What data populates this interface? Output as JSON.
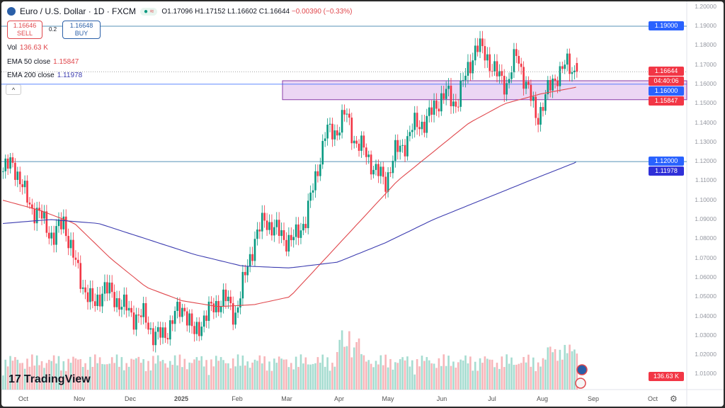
{
  "header": {
    "title": "Euro / U.S. Dollar · 1D · FXCM",
    "open": "O1.17096",
    "high": "H1.17152",
    "low": "L1.16602",
    "close": "C1.16644",
    "change": "−0.00390 (−0.33%)",
    "status_icon": "market-open-dot"
  },
  "trade": {
    "sell_price": "1.16646",
    "sell_label": "SELL",
    "spread": "0.2",
    "buy_price": "1.16648",
    "buy_label": "BUY"
  },
  "legend": {
    "vol_label": "Vol",
    "vol_value": "136.63 K",
    "ema50_label": "EMA 50 close",
    "ema50_value": "1.15847",
    "ema200_label": "EMA 200 close",
    "ema200_value": "1.11978"
  },
  "colors": {
    "up": "#089981",
    "down": "#f23645",
    "ema50": "#e0474c",
    "ema200": "#3c3cb0",
    "zone": "#e6c8f0",
    "line": "#2962ff"
  },
  "chart_data": {
    "type": "candlestick",
    "yaxis_ticks": [
      "1.20000",
      "1.19000",
      "1.18000",
      "1.17000",
      "1.16000",
      "1.15000",
      "1.14000",
      "1.13000",
      "1.12000",
      "1.11000",
      "1.10000",
      "1.09000",
      "1.08000",
      "1.07000",
      "1.06000",
      "1.05000",
      "1.04000",
      "1.03000",
      "1.02000",
      "1.01000"
    ],
    "ylim": [
      1.01,
      1.2
    ],
    "xaxis_ticks": [
      "Oct",
      "Nov",
      "Dec",
      "2025",
      "Feb",
      "Mar",
      "Apr",
      "May",
      "Jun",
      "Jul",
      "Aug",
      "Sep",
      "Oct"
    ],
    "approx_closes_by_period": [
      1.115,
      1.12,
      1.105,
      1.095,
      1.09,
      1.08,
      1.09,
      1.07,
      1.055,
      1.045,
      1.055,
      1.05,
      1.045,
      1.04,
      1.04,
      1.03,
      1.03,
      1.04,
      1.045,
      1.03,
      1.04,
      1.045,
      1.05,
      1.04,
      1.06,
      1.08,
      1.09,
      1.085,
      1.08,
      1.08,
      1.09,
      1.11,
      1.135,
      1.135,
      1.145,
      1.13,
      1.125,
      1.115,
      1.11,
      1.125,
      1.13,
      1.14,
      1.14,
      1.15,
      1.155,
      1.15,
      1.165,
      1.18,
      1.175,
      1.165,
      1.16,
      1.175,
      1.16,
      1.142,
      1.155,
      1.165,
      1.17,
      1.16644
    ],
    "ema50_approx": [
      1.1,
      1.095,
      1.088,
      1.07,
      1.055,
      1.048,
      1.045,
      1.046,
      1.05,
      1.07,
      1.09,
      1.11,
      1.125,
      1.14,
      1.15,
      1.155,
      1.15847
    ],
    "ema200_approx": [
      1.088,
      1.09,
      1.088,
      1.08,
      1.072,
      1.066,
      1.065,
      1.068,
      1.078,
      1.09,
      1.1,
      1.11,
      1.11978
    ],
    "horizontal_levels": [
      {
        "value": "1.19000"
      },
      {
        "value": "1.12000"
      }
    ],
    "zone": {
      "top": 1.1618,
      "bottom": 1.152,
      "line": "1.16000"
    },
    "price_tags": {
      "last": "1.16644",
      "countdown": "04:40:06",
      "ema50": "1.15847",
      "ema200": "1.11978",
      "volume": "136.63 K"
    }
  },
  "brand": {
    "name": "TradingView"
  }
}
